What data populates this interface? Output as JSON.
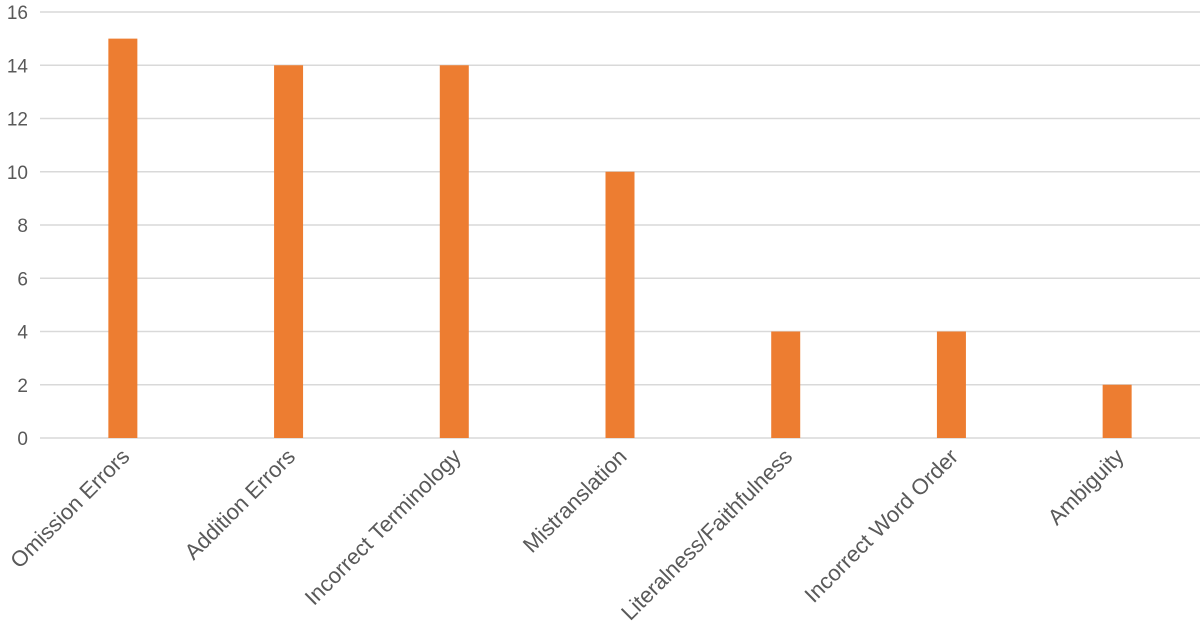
{
  "chart_data": {
    "type": "bar",
    "title": "",
    "xlabel": "",
    "ylabel": "",
    "categories": [
      "Omission Errors",
      "Addition Errors",
      "Incorrect Terminology",
      "Mistranslation",
      "Literalness/Faithfulness",
      "Incorrect Word Order",
      "Ambiguity"
    ],
    "values": [
      15,
      14,
      14,
      10,
      4,
      4,
      2
    ],
    "ylim": [
      0,
      16
    ],
    "yticks": [
      0,
      2,
      4,
      6,
      8,
      10,
      12,
      14,
      16
    ],
    "grid": true,
    "legend": "none",
    "bar_color": "#ED7D31",
    "grid_color": "#D9D9D9",
    "text_color": "#595959"
  }
}
